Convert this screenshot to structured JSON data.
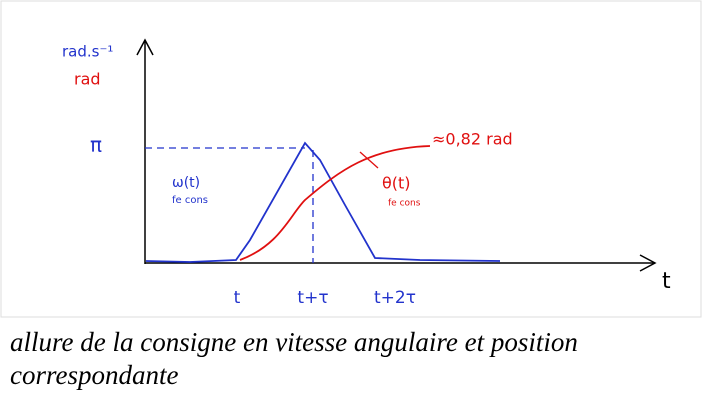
{
  "diagram": {
    "y_axis_labels": {
      "speed_unit": "rad.s⁻¹",
      "position_unit": "rad"
    },
    "y_marker": "π",
    "x_axis_label": "t",
    "x_ticks": [
      "t",
      "t+τ",
      "t+2τ"
    ],
    "speed_curve": {
      "name": "ω(t)",
      "note": "fe cons"
    },
    "position_curve": {
      "name": "θ(t)",
      "note": "fe cons",
      "final_value": "≈0,82 rad"
    }
  },
  "caption": "allure de la consigne en vitesse angulaire et position correspondante"
}
